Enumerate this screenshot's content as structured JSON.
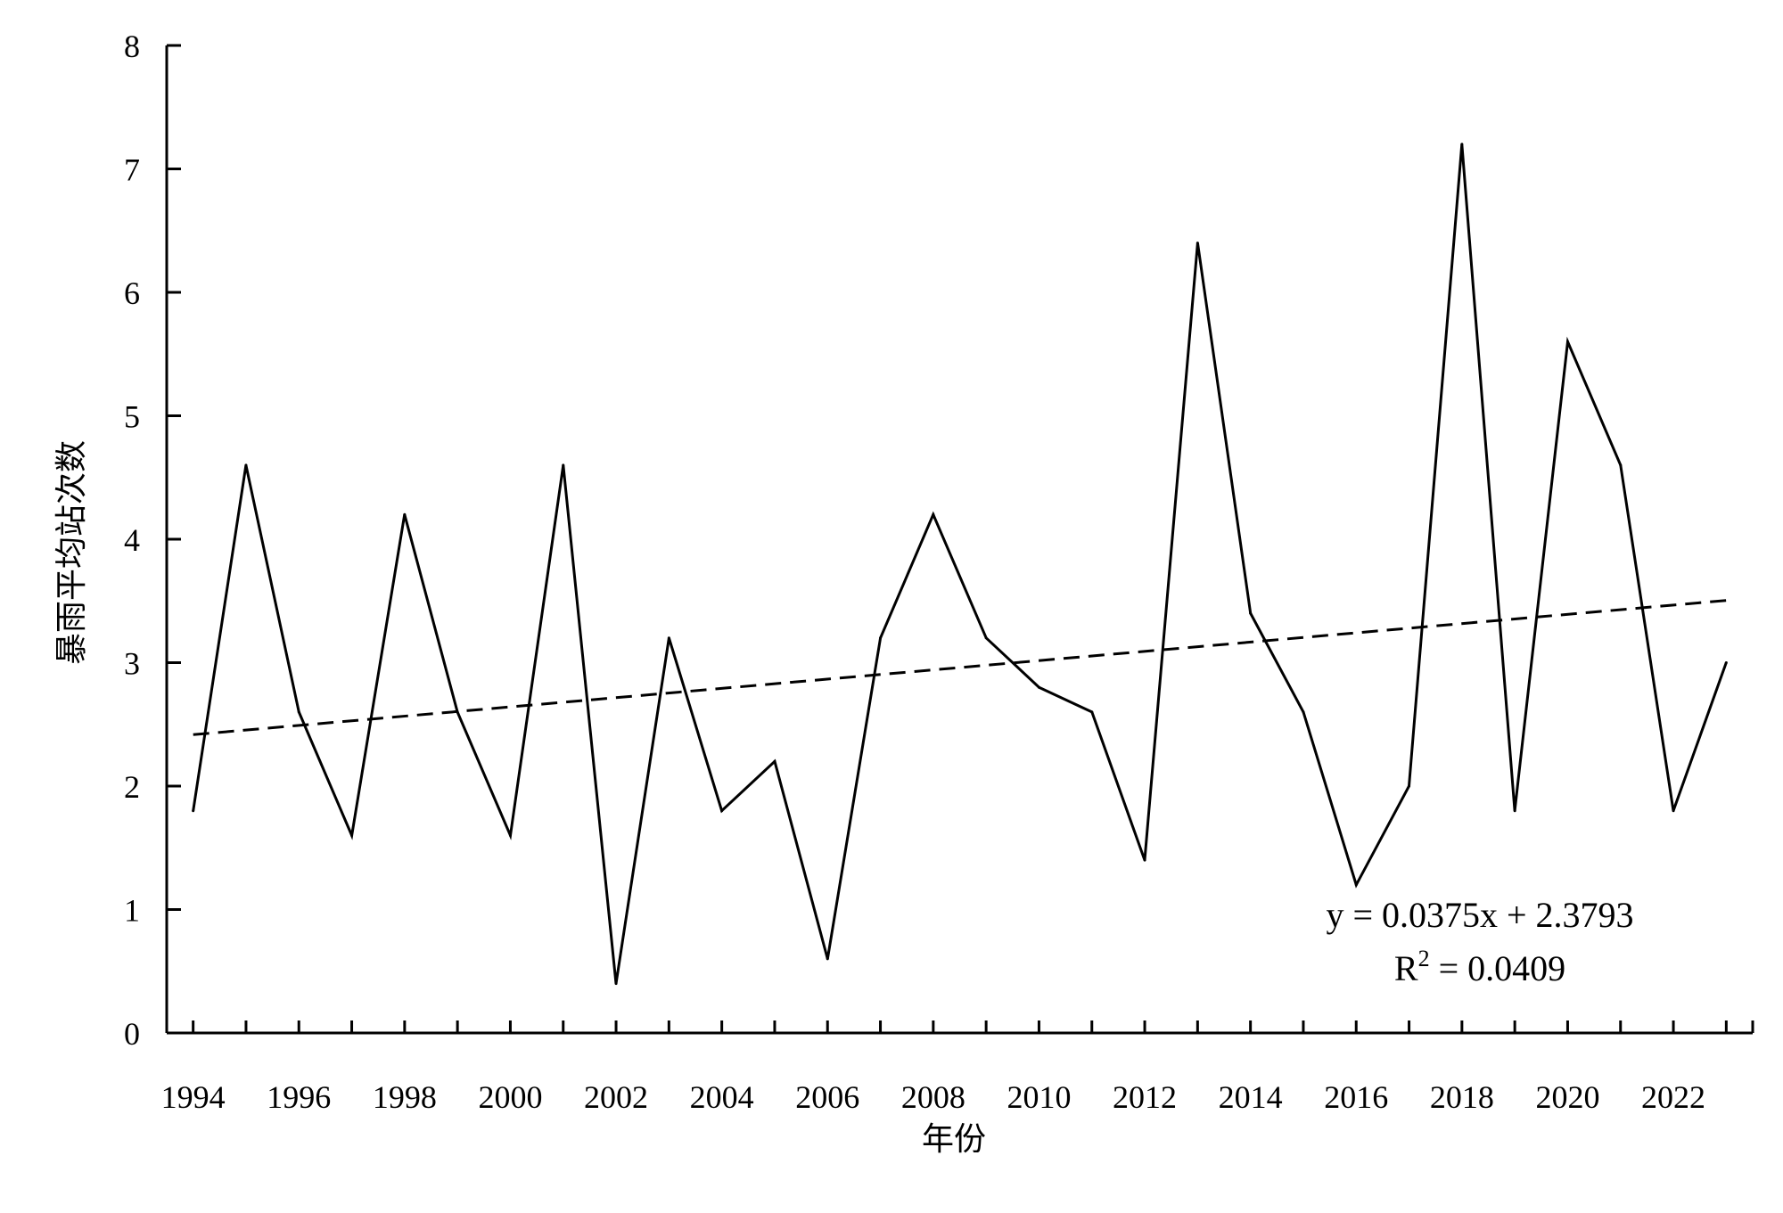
{
  "chart_data": {
    "type": "line",
    "title": "",
    "xlabel": "年份",
    "ylabel": "暴雨平均站次数",
    "xlim": [
      1993.5,
      2023.5
    ],
    "ylim": [
      0,
      8
    ],
    "yticks": [
      0,
      1,
      2,
      3,
      4,
      5,
      6,
      7,
      8
    ],
    "xtick_labels": [
      "1994",
      "1996",
      "1998",
      "2000",
      "2002",
      "2004",
      "2006",
      "2008",
      "2010",
      "2012",
      "2014",
      "2016",
      "2018",
      "2020",
      "2022"
    ],
    "x": [
      1994,
      1995,
      1996,
      1997,
      1998,
      1999,
      2000,
      2001,
      2002,
      2003,
      2004,
      2005,
      2006,
      2007,
      2008,
      2009,
      2010,
      2011,
      2012,
      2013,
      2014,
      2015,
      2016,
      2017,
      2018,
      2019,
      2020,
      2021,
      2022,
      2023
    ],
    "series": [
      {
        "values": [
          1.8,
          4.6,
          2.6,
          1.6,
          4.2,
          2.6,
          1.6,
          4.6,
          0.4,
          3.2,
          1.8,
          2.2,
          0.6,
          3.2,
          4.2,
          3.2,
          2.8,
          2.6,
          1.4,
          6.4,
          3.4,
          2.6,
          1.2,
          2.0,
          7.2,
          1.8,
          5.6,
          4.6,
          1.8,
          3.0
        ],
        "color": "#000000",
        "style": "solid"
      }
    ],
    "trendline": {
      "slope": 0.0375,
      "intercept": 2.3793,
      "style": "dashed",
      "color": "#000000",
      "equation_label": "y = 0.0375x + 2.3793",
      "r2_prefix": "R",
      "r2_sup": "2",
      "r2_value": " = 0.0409"
    },
    "grid": false,
    "legend": "none"
  }
}
